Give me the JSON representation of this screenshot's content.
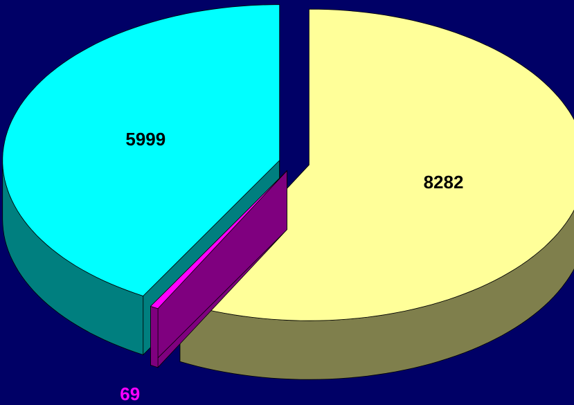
{
  "chart_data": {
    "type": "pie3d",
    "labels_shown": "values",
    "series": [
      {
        "values": [
          8282,
          69,
          5999
        ],
        "colors": [
          "#ffff99",
          "#ff00ff",
          "#00ffff"
        ]
      }
    ]
  }
}
